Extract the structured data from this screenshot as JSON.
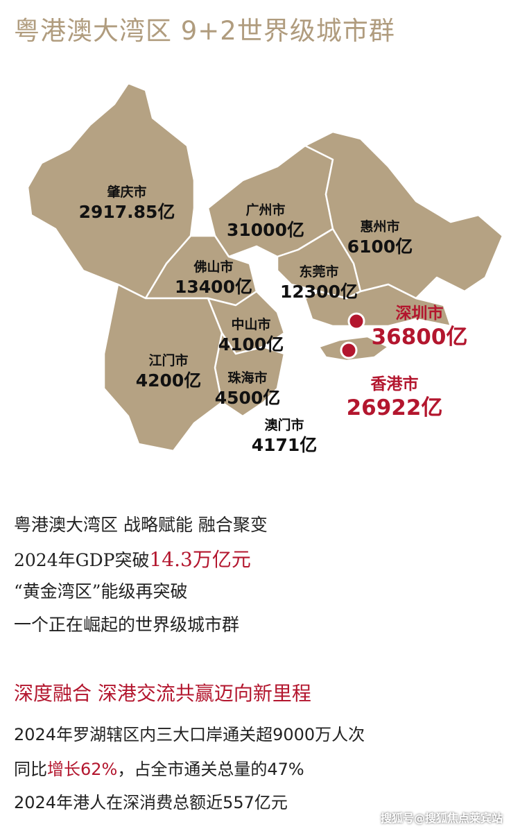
{
  "header": {
    "title": "粤港澳大湾区 9+2世界级城市群"
  },
  "map": {
    "cities": [
      {
        "name": "肇庆市",
        "gdp": "2917.85亿"
      },
      {
        "name": "广州市",
        "gdp": "31000亿"
      },
      {
        "name": "惠州市",
        "gdp": "6100亿"
      },
      {
        "name": "佛山市",
        "gdp": "13400亿"
      },
      {
        "name": "东莞市",
        "gdp": "12300亿"
      },
      {
        "name": "深圳市",
        "gdp": "36800亿"
      },
      {
        "name": "中山市",
        "gdp": "4100亿"
      },
      {
        "name": "江门市",
        "gdp": "4200亿"
      },
      {
        "name": "珠海市",
        "gdp": "4500亿"
      },
      {
        "name": "香港市",
        "gdp": "26922亿"
      },
      {
        "name": "澳门市",
        "gdp": "4171亿"
      }
    ]
  },
  "intro": {
    "line1": "粤港澳大湾区 战略赋能 融合聚变",
    "line2": {
      "text": "2024年GDP突破",
      "highlight": "14.3万亿元"
    },
    "line3": "“黄金湾区”能级再突破",
    "line4": "一个正在崛起的世界级城市群"
  },
  "section": {
    "title": "深度融合 深港交流共赢迈向新里程",
    "line1": "2024年罗湖辖区内三大口岸通关超9000万人次",
    "line2": {
      "before": "同比",
      "highlight": "增长62%",
      "after": "，占全市通关总量的47%"
    },
    "line3": "2024年港人在深消费总额近557亿元"
  },
  "watermark": "搜狐号@搜狐焦点莱宾站"
}
